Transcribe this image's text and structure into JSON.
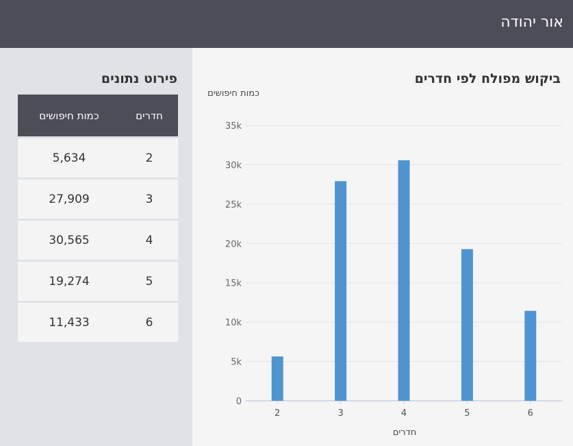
{
  "header": {
    "title": "אור יהודה"
  },
  "chart_panel": {
    "title": "ביקוש מפולח לפי חדרים"
  },
  "table_panel": {
    "title": "פירוט נתונים",
    "headers": {
      "rooms": "חדרים",
      "searches": "כמות חיפושים"
    },
    "rows": [
      {
        "rooms": "2",
        "searches": "5,634"
      },
      {
        "rooms": "3",
        "searches": "27,909"
      },
      {
        "rooms": "4",
        "searches": "30,565"
      },
      {
        "rooms": "5",
        "searches": "19,274"
      },
      {
        "rooms": "6",
        "searches": "11,433"
      }
    ]
  },
  "colors": {
    "bar": "#4f94d0",
    "header_bg": "#4d4d57"
  },
  "chart_data": {
    "type": "bar",
    "categories": [
      "2",
      "3",
      "4",
      "5",
      "6"
    ],
    "values": [
      5634,
      27909,
      30565,
      19274,
      11433
    ],
    "ylabel": "כמות חיפושים",
    "xlabel": "חדרים",
    "ylim": [
      0,
      35000
    ],
    "yticks": [
      0,
      5000,
      10000,
      15000,
      20000,
      25000,
      30000,
      35000
    ],
    "ytick_labels": [
      "0",
      "5k",
      "10k",
      "15k",
      "20k",
      "25k",
      "30k",
      "35k"
    ],
    "grid": true
  }
}
